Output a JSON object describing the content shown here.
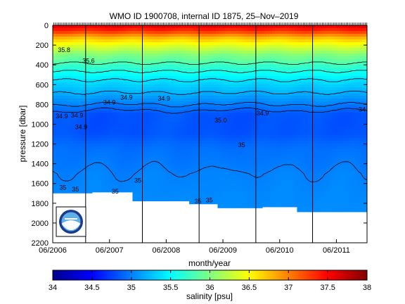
{
  "chart_data": {
    "type": "heatmap",
    "title": "WMO ID 1900708, internal ID 1875, 25–Nov–2019",
    "xlabel": "month/year",
    "ylabel": "pressure [dbar]",
    "xlim": [
      2006.42,
      2011.96
    ],
    "ylim": [
      2200,
      0
    ],
    "x_ticks": [
      {
        "value": 2006.42,
        "label": "06/2006"
      },
      {
        "value": 2007.42,
        "label": "06/2007"
      },
      {
        "value": 2008.42,
        "label": "06/2008"
      },
      {
        "value": 2009.42,
        "label": "06/2009"
      },
      {
        "value": 2010.42,
        "label": "06/2010"
      },
      {
        "value": 2011.42,
        "label": "06/2011"
      }
    ],
    "y_ticks": [
      0,
      200,
      400,
      600,
      800,
      1000,
      1200,
      1400,
      1600,
      1800,
      2000,
      2200
    ],
    "year_boundaries": [
      2007.0,
      2008.0,
      2009.0,
      2010.0,
      2011.0
    ],
    "colorbar": {
      "label": "salinity [psu]",
      "range": [
        34,
        38
      ],
      "ticks": [
        34,
        34.5,
        35,
        35.5,
        36,
        36.5,
        37,
        37.5,
        38
      ],
      "colormap": "jet"
    },
    "profile_depth_limits": [
      {
        "x_from": 2006.42,
        "x_to": 2007.12,
        "max_pressure": 1700
      },
      {
        "x_from": 2007.12,
        "x_to": 2007.82,
        "max_pressure": 1690
      },
      {
        "x_from": 2007.82,
        "x_to": 2008.82,
        "max_pressure": 1780
      },
      {
        "x_from": 2008.82,
        "x_to": 2009.32,
        "max_pressure": 1810
      },
      {
        "x_from": 2009.32,
        "x_to": 2010.12,
        "max_pressure": 1850
      },
      {
        "x_from": 2010.12,
        "x_to": 2010.72,
        "max_pressure": 1840
      },
      {
        "x_from": 2010.72,
        "x_to": 2011.96,
        "max_pressure": 1890
      }
    ],
    "mean_profile": [
      {
        "pressure": 0,
        "salinity": 37.6
      },
      {
        "pressure": 60,
        "salinity": 37.3
      },
      {
        "pressure": 120,
        "salinity": 36.8
      },
      {
        "pressure": 200,
        "salinity": 36.4
      },
      {
        "pressure": 300,
        "salinity": 36.0
      },
      {
        "pressure": 420,
        "salinity": 35.7
      },
      {
        "pressure": 550,
        "salinity": 35.4
      },
      {
        "pressure": 680,
        "salinity": 35.2
      },
      {
        "pressure": 800,
        "salinity": 35.0
      },
      {
        "pressure": 900,
        "salinity": 34.85
      },
      {
        "pressure": 1100,
        "salinity": 34.85
      },
      {
        "pressure": 1250,
        "salinity": 34.95
      },
      {
        "pressure": 1500,
        "salinity": 35.03
      },
      {
        "pressure": 1900,
        "salinity": 35.05
      }
    ],
    "contour_levels": [
      35.8,
      35.6,
      35.4,
      35.2,
      35.0,
      34.9,
      35.0
    ],
    "contour_labels": [
      {
        "x": 2006.62,
        "pressure": 250,
        "text": "35.8"
      },
      {
        "x": 2007.05,
        "pressure": 360,
        "text": "35.6"
      },
      {
        "x": 2007.42,
        "pressure": 780,
        "text": "34.9"
      },
      {
        "x": 2007.72,
        "pressure": 730,
        "text": "34.9"
      },
      {
        "x": 2008.38,
        "pressure": 740,
        "text": "34.9"
      },
      {
        "x": 2006.85,
        "pressure": 910,
        "text": "34.9"
      },
      {
        "x": 2006.58,
        "pressure": 920,
        "text": "34.9"
      },
      {
        "x": 2006.92,
        "pressure": 1030,
        "text": "34.9"
      },
      {
        "x": 2009.38,
        "pressure": 960,
        "text": "35.0"
      },
      {
        "x": 2010.12,
        "pressure": 890,
        "text": "34.9"
      },
      {
        "x": 2011.92,
        "pressure": 850,
        "text": "34.9"
      },
      {
        "x": 2009.75,
        "pressure": 1210,
        "text": "35"
      },
      {
        "x": 2006.6,
        "pressure": 1640,
        "text": "35"
      },
      {
        "x": 2006.82,
        "pressure": 1660,
        "text": "35"
      },
      {
        "x": 2007.52,
        "pressure": 1680,
        "text": "35"
      },
      {
        "x": 2007.92,
        "pressure": 1570,
        "text": "35"
      },
      {
        "x": 2008.98,
        "pressure": 1780,
        "text": "35"
      },
      {
        "x": 2009.18,
        "pressure": 1770,
        "text": "35"
      }
    ]
  }
}
